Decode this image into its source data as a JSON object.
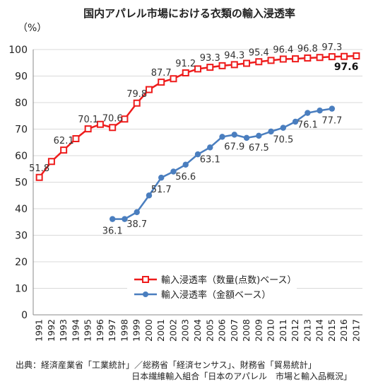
{
  "chart_data": {
    "type": "line",
    "title": "国内アパレル市場における衣類の輸入浸透率",
    "ylabel": "（%）",
    "ylim": [
      0,
      100
    ],
    "yticks": [
      0,
      10,
      20,
      30,
      40,
      50,
      60,
      70,
      80,
      90,
      100
    ],
    "x": [
      1991,
      1992,
      1993,
      1994,
      1995,
      1996,
      1997,
      1998,
      1999,
      2000,
      2001,
      2002,
      2003,
      2004,
      2005,
      2006,
      2007,
      2008,
      2009,
      2010,
      2011,
      2012,
      2013,
      2014,
      2015,
      2016,
      2017
    ],
    "grid": true,
    "legend_position": "bottom-center",
    "series": [
      {
        "name": "輸入浸透率（数量(点数)ベース）",
        "color": "#ee1c1c",
        "marker": "square",
        "values": [
          51.8,
          57.8,
          62.1,
          66.4,
          70.1,
          71.8,
          70.6,
          73.8,
          79.8,
          84.9,
          87.7,
          89.0,
          91.2,
          92.7,
          93.3,
          93.9,
          94.3,
          94.8,
          95.4,
          95.9,
          96.4,
          96.5,
          96.8,
          97.0,
          97.3,
          97.4,
          97.6
        ],
        "labels": {
          "1991": "51.8",
          "1995": "70.1",
          "1997": "70.6",
          "1993": "62.1",
          "1999": "79.8",
          "2001": "87.7",
          "2003": "91.2",
          "2005": "93.3",
          "2007": "94.3",
          "2009": "95.4",
          "2011": "96.4",
          "2013": "96.8",
          "2015": "97.3",
          "2017": "97.6"
        }
      },
      {
        "name": "輸入浸透率（金額ベース）",
        "color": "#4a7ebf",
        "marker": "circle",
        "x": [
          1997,
          1998,
          1999,
          2000,
          2001,
          2002,
          2003,
          2004,
          2005,
          2006,
          2007,
          2008,
          2009,
          2010,
          2011,
          2012,
          2013,
          2014,
          2015
        ],
        "values": [
          36.1,
          36.1,
          38.7,
          45.0,
          51.7,
          54.0,
          56.6,
          60.5,
          63.1,
          67.1,
          67.9,
          66.7,
          67.5,
          69.1,
          70.5,
          72.8,
          76.1,
          77.0,
          77.7
        ],
        "labels": {
          "1997": "36.1",
          "1999": "38.7",
          "2001": "51.7",
          "2003": "56.6",
          "2005": "63.1",
          "2007": "67.9",
          "2009": "67.5",
          "2011": "70.5",
          "2013": "76.1",
          "2015": "77.7"
        }
      }
    ]
  },
  "source": {
    "line1": "出典：経済産業省「工業統計」／総務省「経済センサス」、財務省「貿易統計」",
    "line2": "日本繊維輸入組合「日本のアパレル　市場と輸入品概況」"
  }
}
